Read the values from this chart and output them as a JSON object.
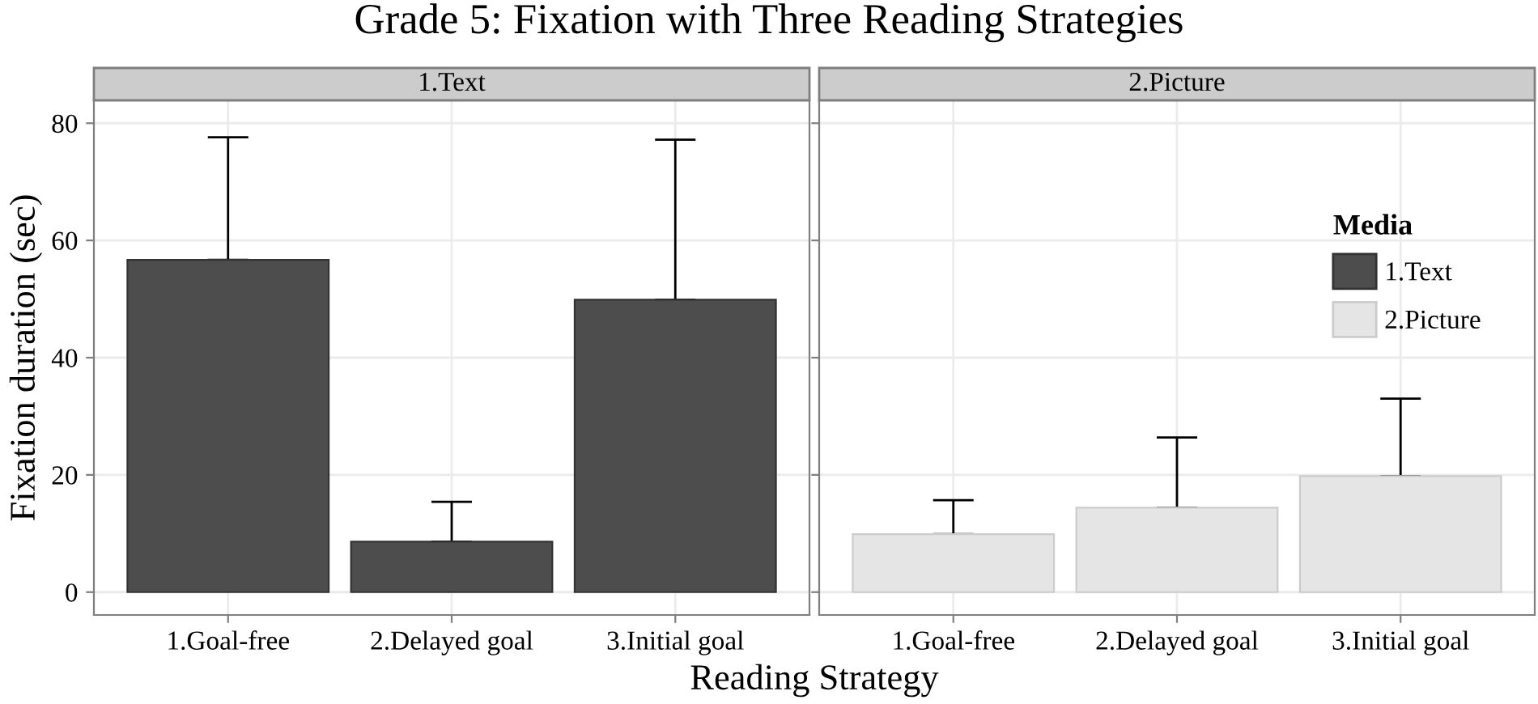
{
  "chart_data": [
    {
      "type": "bar",
      "title": "Grade 5: Fixation with Three Reading Strategies",
      "subtitle": "1.Text",
      "xlabel": "Reading Strategy",
      "ylabel": "Fixation duration (sec)",
      "categories": [
        "1.Goal-free",
        "2.Delayed goal",
        "3.Initial goal"
      ],
      "series": [
        {
          "name": "1.Text",
          "color": "#4d4d4d",
          "values": [
            56.7,
            8.6,
            49.9
          ],
          "errors": [
            [
              56.7,
              77.6
            ],
            [
              8.6,
              15.4
            ],
            [
              49.9,
              77.2
            ]
          ]
        }
      ],
      "ylim": [
        -3.9,
        83.9
      ],
      "yticks": [
        0,
        20,
        40,
        60,
        80
      ],
      "grid": true,
      "legend": "top right"
    },
    {
      "type": "bar",
      "subtitle": "2.Picture",
      "legend_title": "Media",
      "categories": [
        "1.Goal-free",
        "2.Delayed goal",
        "3.Initial goal"
      ],
      "series": [
        {
          "name": "2.Picture",
          "color": "#e5e5e5",
          "values": [
            9.9,
            14.4,
            19.8
          ],
          "errors": [
            [
              9.9,
              15.7
            ],
            [
              14.4,
              26.4
            ],
            [
              19.8,
              33.0
            ]
          ]
        }
      ],
      "ylim": [
        -3.9,
        83.9
      ],
      "yticks": [
        0,
        20,
        40,
        60,
        80
      ],
      "grid": true,
      "legend": "top right",
      "tick_labels": "x"
    }
  ]
}
